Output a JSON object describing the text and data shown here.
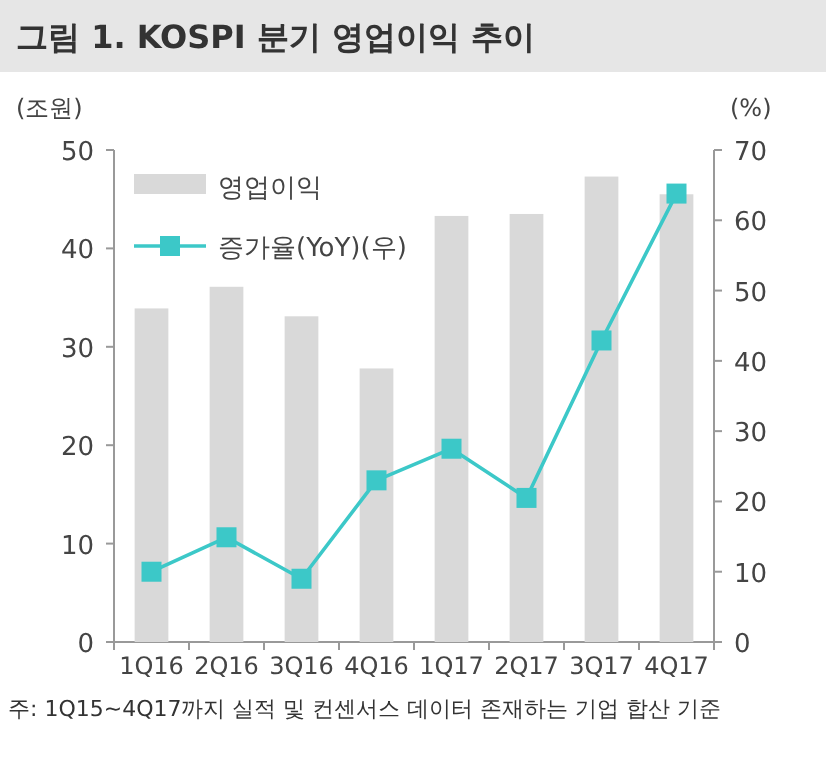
{
  "chart_data": {
    "type": "bar",
    "title": "그림 1. KOSPI 분기 영업이익 추이",
    "categories": [
      "1Q16",
      "2Q16",
      "3Q16",
      "4Q16",
      "1Q17",
      "2Q17",
      "3Q17",
      "4Q17"
    ],
    "series": [
      {
        "name": "영업이익",
        "color": "#d9d9d9",
        "values": [
          33.9,
          36.1,
          33.1,
          27.8,
          43.3,
          43.5,
          47.3,
          45.5
        ]
      },
      {
        "name": "증가율(YoY)(우)",
        "type": "line",
        "axis": "y2",
        "color": "#3cc8c8",
        "values": [
          10.0,
          14.9,
          9.0,
          23.0,
          27.5,
          20.5,
          42.9,
          63.8
        ]
      }
    ],
    "ylabel": "(조원)",
    "y2label": "(%)",
    "ylim": [
      0,
      50
    ],
    "yticks": [
      0,
      10,
      20,
      30,
      40,
      50
    ],
    "y2lim": [
      0,
      70
    ],
    "y2ticks": [
      0,
      10,
      20,
      30,
      40,
      50,
      60,
      70
    ],
    "legend": "top left",
    "marker": "square",
    "line_style": "solid",
    "grid": false,
    "annotations": [
      "주: 1Q15~4Q17까지 실적 및 컨센서스 데이터 존재하는 기업 합산 기준"
    ]
  }
}
